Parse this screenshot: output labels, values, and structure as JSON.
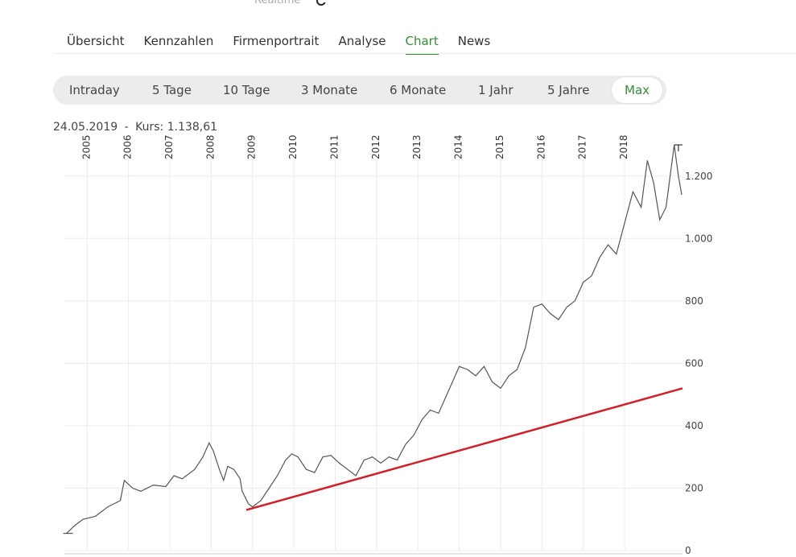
{
  "header": {
    "realtime_label": "Realtime"
  },
  "tabs": [
    {
      "label": "Übersicht",
      "active": false
    },
    {
      "label": "Kennzahlen",
      "active": false
    },
    {
      "label": "Firmenportrait",
      "active": false
    },
    {
      "label": "Analyse",
      "active": false
    },
    {
      "label": "Chart",
      "active": true
    },
    {
      "label": "News",
      "active": false
    }
  ],
  "ranges": [
    {
      "label": "Intraday",
      "active": false
    },
    {
      "label": "5 Tage",
      "active": false
    },
    {
      "label": "10 Tage",
      "active": false
    },
    {
      "label": "3 Monate",
      "active": false
    },
    {
      "label": "6 Monate",
      "active": false
    },
    {
      "label": "1 Jahr",
      "active": false
    },
    {
      "label": "5 Jahre",
      "active": false
    },
    {
      "label": "Max",
      "active": true
    }
  ],
  "info": {
    "date": "24.05.2019",
    "separator": "-",
    "kurs_label": "Kurs:",
    "kurs_value": "1.138,61"
  },
  "colors": {
    "accent": "#3a8a3a",
    "price_line": "#555555",
    "trend_line": "#d0202a",
    "grid": "#ececec"
  },
  "chart_data": {
    "type": "line",
    "x_ticks": [
      "2005",
      "2006",
      "2007",
      "2008",
      "2009",
      "2010",
      "2011",
      "2012",
      "2013",
      "2014",
      "2015",
      "2016",
      "2017",
      "2018"
    ],
    "y_ticks": [
      {
        "value": 0,
        "label": "0"
      },
      {
        "value": 200,
        "label": "200"
      },
      {
        "value": 400,
        "label": "400"
      },
      {
        "value": 600,
        "label": "600"
      },
      {
        "value": 800,
        "label": "800"
      },
      {
        "value": 1000,
        "label": "1.000"
      },
      {
        "value": 1200,
        "label": "1.200"
      }
    ],
    "ylim": [
      0,
      1300
    ],
    "xlim": [
      2004.45,
      2019.4
    ],
    "grid": true,
    "series": [
      {
        "type": "price",
        "x": [
          2004.5,
          2004.7,
          2004.9,
          2005.2,
          2005.5,
          2005.8,
          2005.9,
          2006.1,
          2006.3,
          2006.6,
          2006.9,
          2007.1,
          2007.3,
          2007.6,
          2007.8,
          2007.95,
          2008.05,
          2008.2,
          2008.3,
          2008.4,
          2008.55,
          2008.7,
          2008.75,
          2008.9,
          2009.0,
          2009.2,
          2009.4,
          2009.6,
          2009.8,
          2009.95,
          2010.1,
          2010.3,
          2010.5,
          2010.7,
          2010.9,
          2011.1,
          2011.3,
          2011.5,
          2011.7,
          2011.9,
          2012.1,
          2012.3,
          2012.5,
          2012.7,
          2012.9,
          2013.1,
          2013.3,
          2013.5,
          2013.7,
          2013.9,
          2014.0,
          2014.2,
          2014.4,
          2014.6,
          2014.8,
          2015.0,
          2015.2,
          2015.4,
          2015.6,
          2015.8,
          2016.0,
          2016.2,
          2016.4,
          2016.6,
          2016.8,
          2017.0,
          2017.2,
          2017.4,
          2017.6,
          2017.8,
          2018.0,
          2018.2,
          2018.4,
          2018.55,
          2018.7,
          2018.85,
          2019.0,
          2019.2,
          2019.3,
          2019.38
        ],
        "y": [
          55,
          80,
          100,
          110,
          140,
          160,
          225,
          200,
          190,
          210,
          205,
          240,
          230,
          260,
          300,
          345,
          320,
          260,
          225,
          270,
          260,
          230,
          190,
          150,
          140,
          160,
          200,
          240,
          290,
          310,
          300,
          260,
          250,
          300,
          305,
          280,
          260,
          240,
          290,
          300,
          280,
          300,
          290,
          340,
          370,
          420,
          450,
          440,
          500,
          560,
          590,
          580,
          560,
          590,
          540,
          520,
          560,
          580,
          650,
          780,
          790,
          760,
          740,
          780,
          800,
          860,
          880,
          940,
          980,
          950,
          1050,
          1150,
          1100,
          1250,
          1180,
          1060,
          1100,
          1300,
          1200,
          1140
        ]
      },
      {
        "type": "trend",
        "x": [
          2008.85,
          2019.4
        ],
        "y": [
          130,
          520
        ]
      }
    ],
    "last_value": {
      "date": "24.05.2019",
      "value": 1138.61
    }
  }
}
